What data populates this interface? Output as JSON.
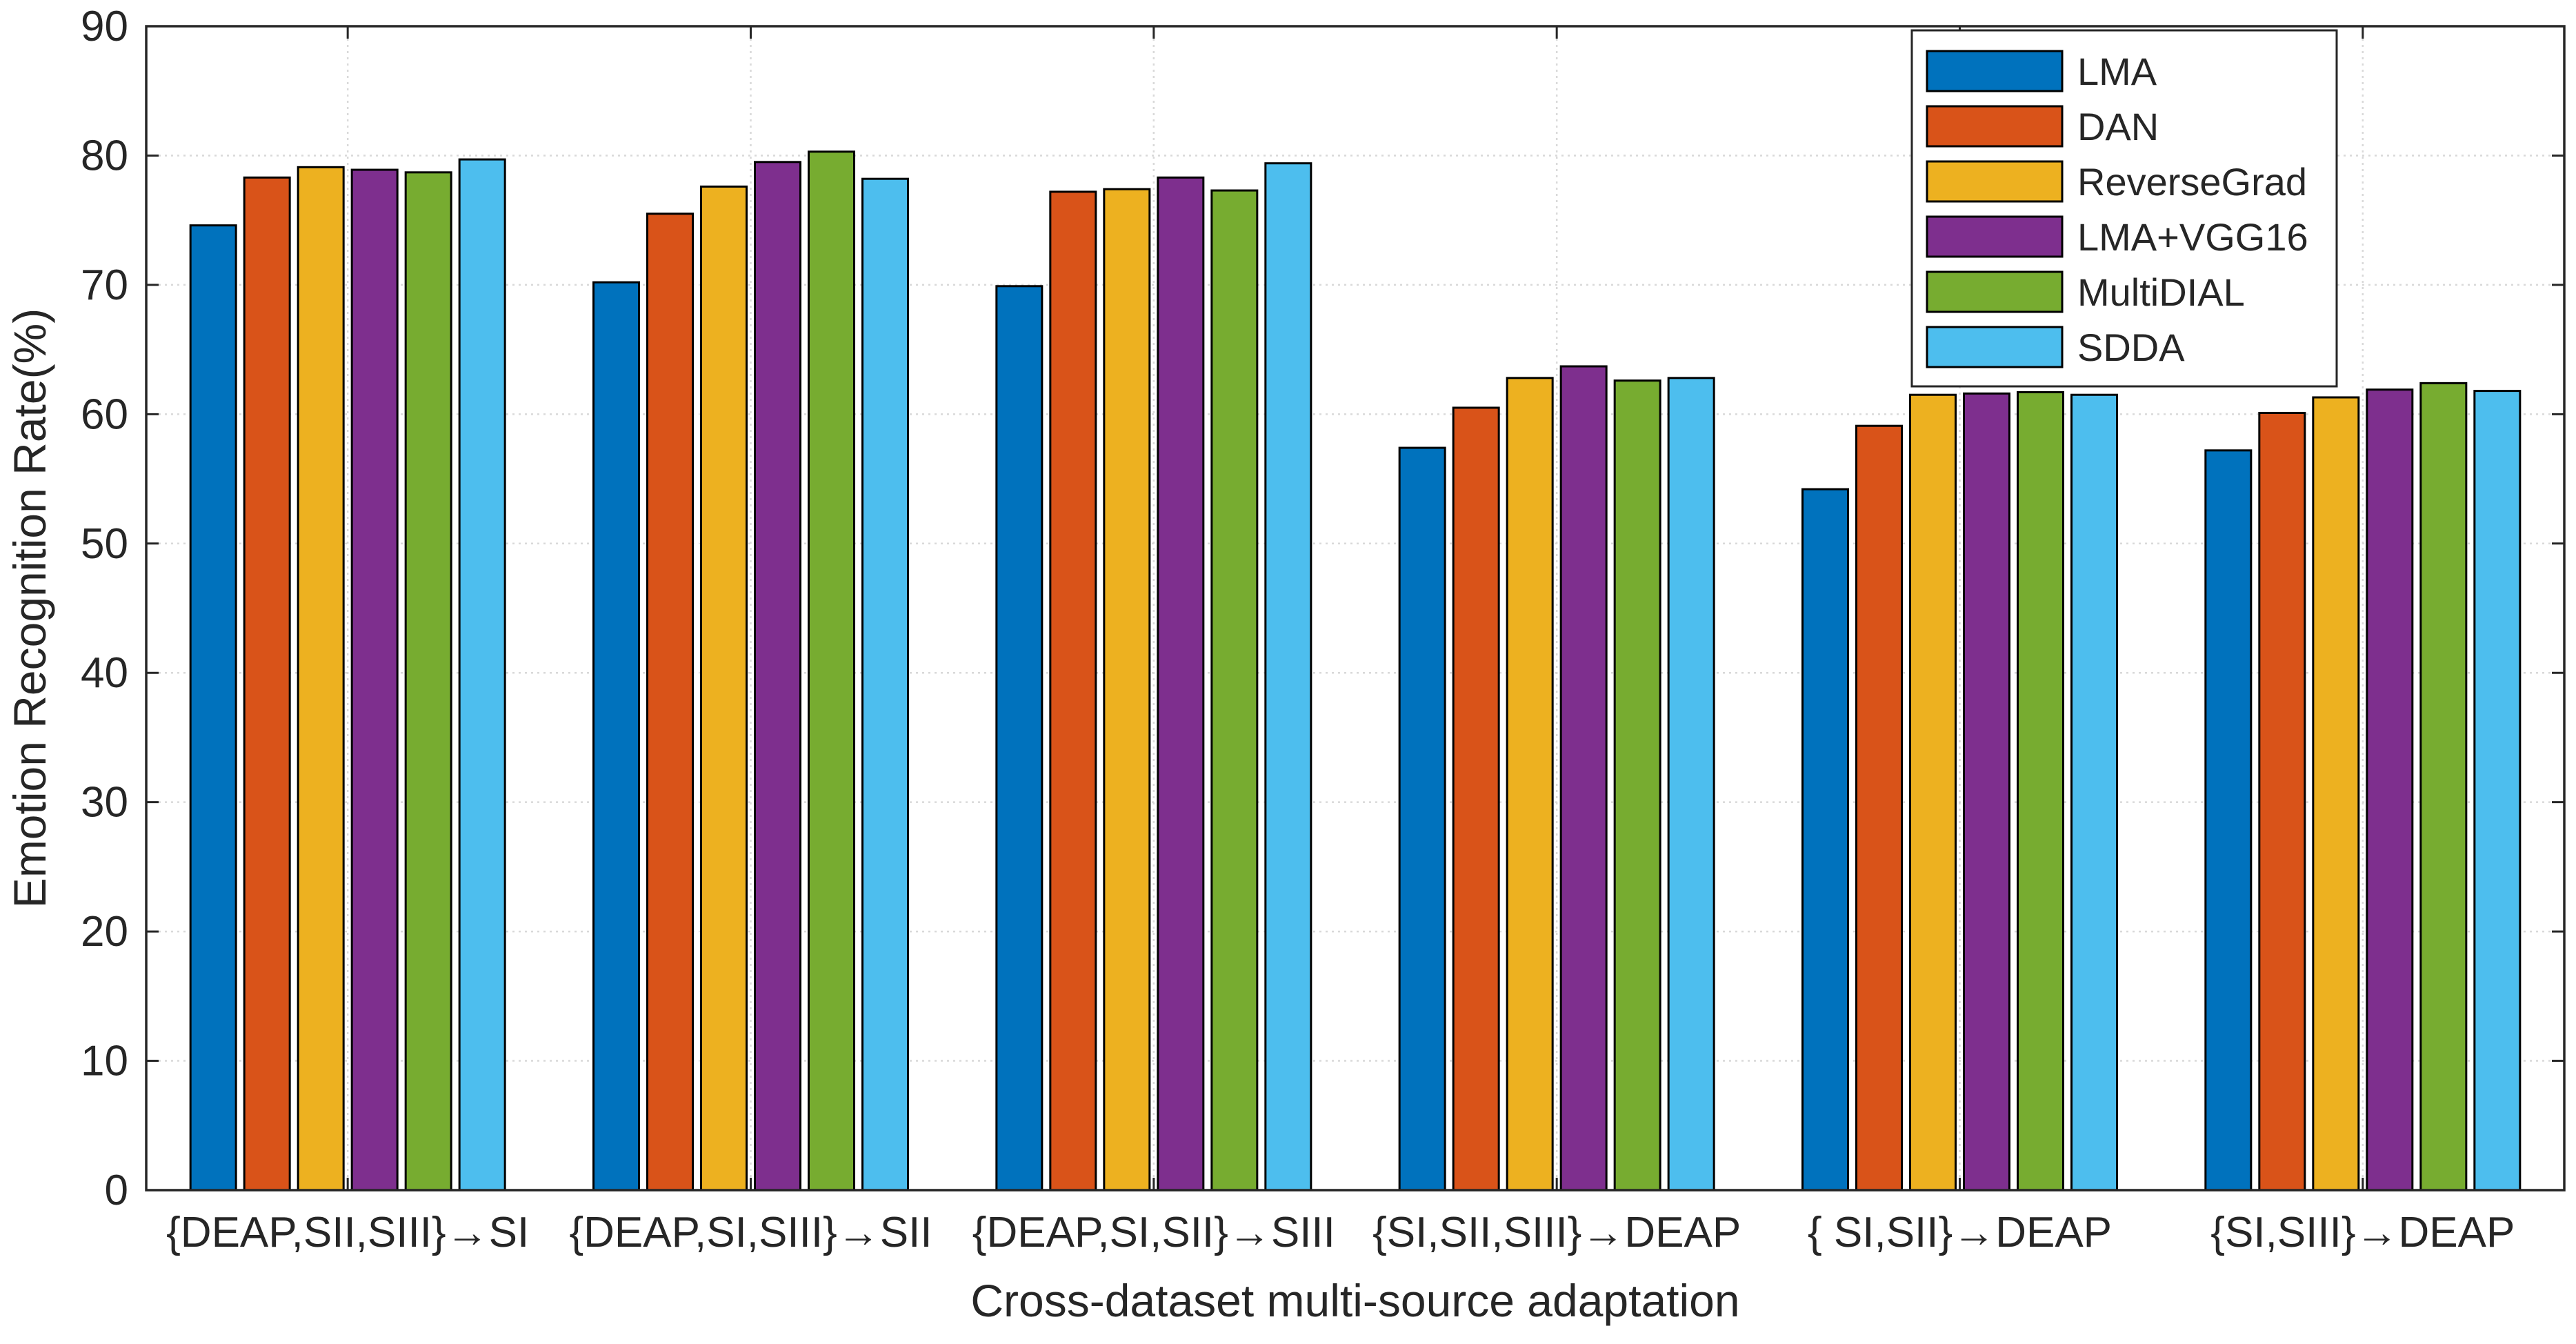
{
  "chart_data": {
    "type": "bar",
    "title": "",
    "xlabel": "Cross-dataset multi-source adaptation",
    "ylabel": "Emotion Recognition Rate(%)",
    "ylim": [
      0,
      90
    ],
    "yticks": [
      0,
      10,
      20,
      30,
      40,
      50,
      60,
      70,
      80,
      90
    ],
    "grid": true,
    "legend_position": "top-right",
    "categories": [
      "{DEAP,SII,SIII}→SI",
      "{DEAP,SI,SIII}→SII",
      "{DEAP,SI,SII}→SIII",
      "{SI,SII,SIII}→DEAP",
      "{ SI,SII}→DEAP",
      "{SI,SIII}→DEAP"
    ],
    "series": [
      {
        "name": "LMA",
        "color": "#0072BD",
        "values": [
          74.6,
          70.2,
          69.9,
          57.4,
          54.2,
          57.2
        ]
      },
      {
        "name": "DAN",
        "color": "#D95319",
        "values": [
          78.3,
          75.5,
          77.2,
          60.5,
          59.1,
          60.1
        ]
      },
      {
        "name": "ReverseGrad",
        "color": "#EDB120",
        "values": [
          79.1,
          77.6,
          77.4,
          62.8,
          61.5,
          61.3
        ]
      },
      {
        "name": "LMA+VGG16",
        "color": "#7E2F8E",
        "values": [
          78.9,
          79.5,
          78.3,
          63.7,
          61.6,
          61.9
        ]
      },
      {
        "name": "MultiDIAL",
        "color": "#77AC30",
        "values": [
          78.7,
          80.3,
          77.3,
          62.6,
          61.7,
          62.4
        ]
      },
      {
        "name": "SDDA",
        "color": "#4DBEEE",
        "values": [
          79.7,
          78.2,
          79.4,
          62.8,
          61.5,
          61.8
        ]
      }
    ]
  }
}
